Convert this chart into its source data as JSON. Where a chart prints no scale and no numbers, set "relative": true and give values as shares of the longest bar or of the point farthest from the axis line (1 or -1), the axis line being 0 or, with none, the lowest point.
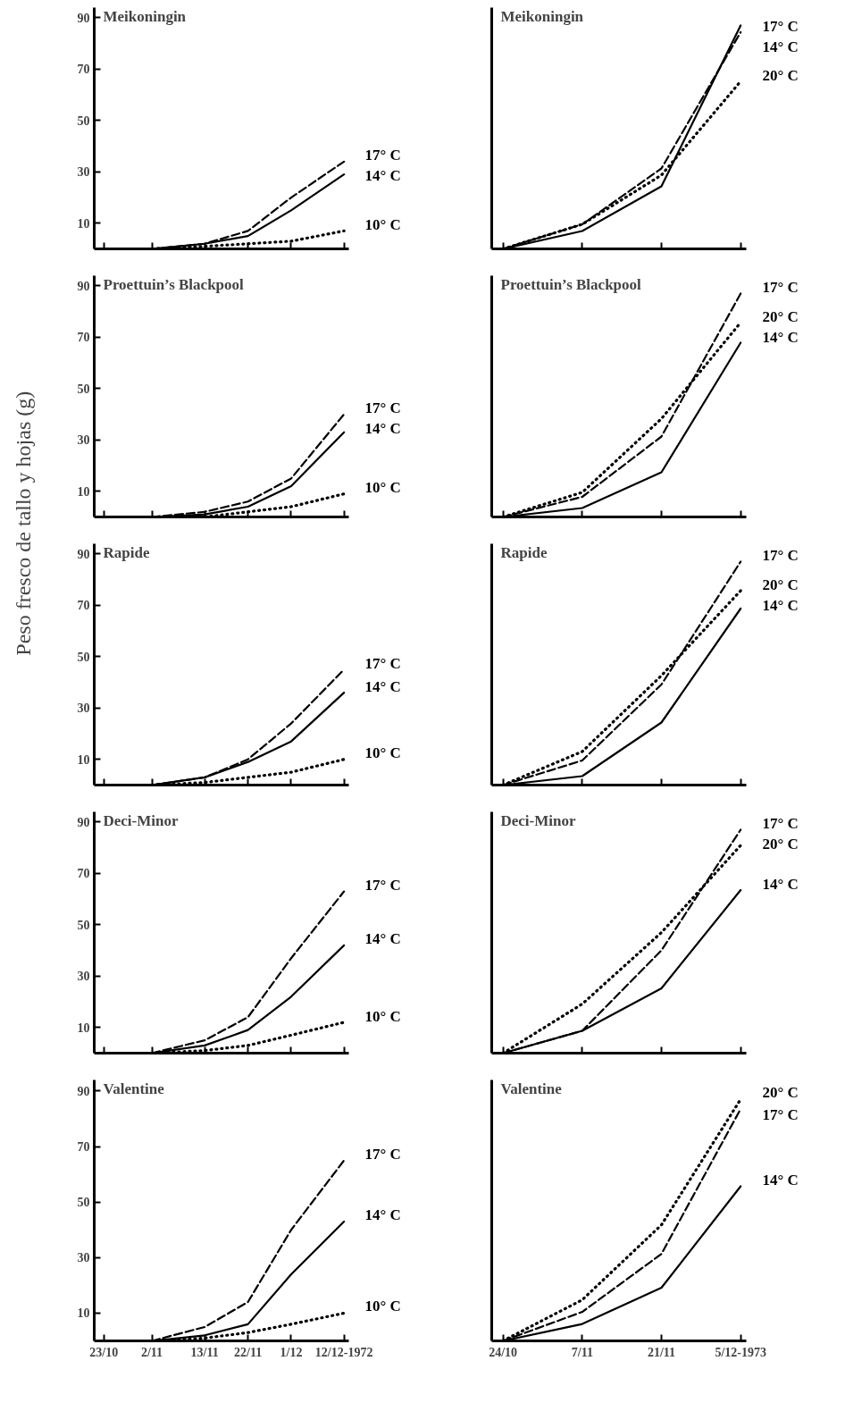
{
  "chart_data": [
    {
      "type": "line",
      "title": "Meikoningin",
      "x": [
        "1972-11-02",
        "1972-11-13",
        "1972-11-22",
        "1972-12-01",
        "1972-12-12"
      ],
      "xlim": [
        "1972-10-21",
        "1972-12-13"
      ],
      "xticks": [
        {
          "value": "1972-10-23",
          "label": null
        },
        {
          "value": "1972-11-02",
          "label": null
        },
        {
          "value": "1972-11-13",
          "label": null
        },
        {
          "value": "1972-11-22",
          "label": null
        },
        {
          "value": "1972-12-01",
          "label": null
        },
        {
          "value": "1972-12-12",
          "label": null
        }
      ],
      "ylim": [
        0,
        94
      ],
      "yticks": [
        10,
        30,
        50,
        70,
        90
      ],
      "tick_labels": "y",
      "series": [
        {
          "name": "17° C",
          "color": "#000000",
          "line_style": "dashed",
          "values": [
            0,
            2,
            7,
            20,
            34
          ]
        },
        {
          "name": "14° C",
          "color": "#000000",
          "line_style": "solid",
          "values": [
            0,
            2,
            5,
            15,
            29
          ]
        },
        {
          "name": "10° C",
          "color": "#000000",
          "line_style": "dotted",
          "values": [
            0,
            1,
            2,
            3,
            7
          ]
        }
      ]
    },
    {
      "type": "line",
      "title": "Meikoningin",
      "x": [
        "1973-10-24",
        "1973-11-07",
        "1973-11-21",
        "1973-12-05"
      ],
      "xlim": [
        "1973-10-22",
        "1973-12-06"
      ],
      "xticks": [
        {
          "value": "1973-10-24",
          "label": null
        },
        {
          "value": "1973-11-07",
          "label": null
        },
        {
          "value": "1973-11-21",
          "label": null
        },
        {
          "value": "1973-12-05",
          "label": null
        }
      ],
      "relative": true,
      "tick_labels": false,
      "series": [
        {
          "name": "17° C",
          "color": "#000000",
          "line_style": "dashed",
          "values": [
            0,
            0.11,
            0.36,
            0.97
          ]
        },
        {
          "name": "14° C",
          "color": "#000000",
          "line_style": "solid",
          "values": [
            0,
            0.08,
            0.28,
            1
          ]
        },
        {
          "name": "20° C",
          "color": "#000000",
          "line_style": "dotted",
          "values": [
            0,
            0.11,
            0.33,
            0.75
          ]
        }
      ]
    },
    {
      "type": "line",
      "title": "Proettuin’s Blackpool",
      "x": [
        "1972-11-02",
        "1972-11-13",
        "1972-11-22",
        "1972-12-01",
        "1972-12-12"
      ],
      "xlim": [
        "1972-10-21",
        "1972-12-13"
      ],
      "xticks": [
        {
          "value": "1972-10-23",
          "label": null
        },
        {
          "value": "1972-11-02",
          "label": null
        },
        {
          "value": "1972-11-13",
          "label": null
        },
        {
          "value": "1972-11-22",
          "label": null
        },
        {
          "value": "1972-12-01",
          "label": null
        },
        {
          "value": "1972-12-12",
          "label": null
        }
      ],
      "ylim": [
        0,
        94
      ],
      "yticks": [
        10,
        30,
        50,
        70,
        90
      ],
      "tick_labels": "y",
      "series": [
        {
          "name": "17° C",
          "color": "#000000",
          "line_style": "dashed",
          "values": [
            0,
            2,
            6,
            15,
            40
          ]
        },
        {
          "name": "14° C",
          "color": "#000000",
          "line_style": "solid",
          "values": [
            0,
            1,
            4,
            12,
            33
          ]
        },
        {
          "name": "10° C",
          "color": "#000000",
          "line_style": "dotted",
          "values": [
            0,
            0,
            2,
            4,
            9
          ]
        }
      ]
    },
    {
      "type": "line",
      "title": "Proettuin’s Blackpool",
      "x": [
        "1973-10-24",
        "1973-11-07",
        "1973-11-21",
        "1973-12-05"
      ],
      "xlim": [
        "1973-10-22",
        "1973-12-06"
      ],
      "xticks": [
        {
          "value": "1973-10-24",
          "label": null
        },
        {
          "value": "1973-11-07",
          "label": null
        },
        {
          "value": "1973-11-21",
          "label": null
        },
        {
          "value": "1973-12-05",
          "label": null
        }
      ],
      "relative": true,
      "tick_labels": false,
      "series": [
        {
          "name": "17° C",
          "color": "#000000",
          "line_style": "dashed",
          "values": [
            0,
            0.09,
            0.36,
            1
          ]
        },
        {
          "name": "20° C",
          "color": "#000000",
          "line_style": "dotted",
          "values": [
            0,
            0.11,
            0.44,
            0.87
          ]
        },
        {
          "name": "14° C",
          "color": "#000000",
          "line_style": "solid",
          "values": [
            0,
            0.04,
            0.2,
            0.78
          ]
        }
      ]
    },
    {
      "type": "line",
      "title": "Rapide",
      "ylabel": "Peso fresco de tallo y hojas (g)",
      "x": [
        "1972-11-02",
        "1972-11-13",
        "1972-11-22",
        "1972-12-01",
        "1972-12-12"
      ],
      "xlim": [
        "1972-10-21",
        "1972-12-13"
      ],
      "xticks": [
        {
          "value": "1972-10-23",
          "label": null
        },
        {
          "value": "1972-11-02",
          "label": null
        },
        {
          "value": "1972-11-13",
          "label": null
        },
        {
          "value": "1972-11-22",
          "label": null
        },
        {
          "value": "1972-12-01",
          "label": null
        },
        {
          "value": "1972-12-12",
          "label": null
        }
      ],
      "ylim": [
        0,
        94
      ],
      "yticks": [
        10,
        30,
        50,
        70,
        90
      ],
      "tick_labels": "y",
      "series": [
        {
          "name": "17° C",
          "color": "#000000",
          "line_style": "dashed",
          "values": [
            0,
            3,
            10,
            24,
            45
          ]
        },
        {
          "name": "14° C",
          "color": "#000000",
          "line_style": "solid",
          "values": [
            0,
            3,
            9,
            17,
            36
          ]
        },
        {
          "name": "10° C",
          "color": "#000000",
          "line_style": "dotted",
          "values": [
            0,
            1,
            3,
            5,
            10
          ]
        }
      ]
    },
    {
      "type": "line",
      "title": "Rapide",
      "x": [
        "1973-10-24",
        "1973-11-07",
        "1973-11-21",
        "1973-12-05"
      ],
      "xlim": [
        "1973-10-22",
        "1973-12-06"
      ],
      "xticks": [
        {
          "value": "1973-10-24",
          "label": null
        },
        {
          "value": "1973-11-07",
          "label": null
        },
        {
          "value": "1973-11-21",
          "label": null
        },
        {
          "value": "1973-12-05",
          "label": null
        }
      ],
      "relative": true,
      "tick_labels": false,
      "series": [
        {
          "name": "17° C",
          "color": "#000000",
          "line_style": "dashed",
          "values": [
            0,
            0.11,
            0.45,
            1
          ]
        },
        {
          "name": "20° C",
          "color": "#000000",
          "line_style": "dotted",
          "values": [
            0,
            0.15,
            0.49,
            0.87
          ]
        },
        {
          "name": "14° C",
          "color": "#000000",
          "line_style": "solid",
          "values": [
            0,
            0.04,
            0.28,
            0.79
          ]
        }
      ]
    },
    {
      "type": "line",
      "title": "Deci-Minor",
      "x": [
        "1972-11-02",
        "1972-11-13",
        "1972-11-22",
        "1972-12-01",
        "1972-12-12"
      ],
      "xlim": [
        "1972-10-21",
        "1972-12-13"
      ],
      "xticks": [
        {
          "value": "1972-10-23",
          "label": null
        },
        {
          "value": "1972-11-02",
          "label": null
        },
        {
          "value": "1972-11-13",
          "label": null
        },
        {
          "value": "1972-11-22",
          "label": null
        },
        {
          "value": "1972-12-01",
          "label": null
        },
        {
          "value": "1972-12-12",
          "label": null
        }
      ],
      "ylim": [
        0,
        94
      ],
      "yticks": [
        10,
        30,
        50,
        70,
        90
      ],
      "tick_labels": "y",
      "series": [
        {
          "name": "17° C",
          "color": "#000000",
          "line_style": "dashed",
          "values": [
            0,
            5,
            14,
            37,
            63
          ]
        },
        {
          "name": "14° C",
          "color": "#000000",
          "line_style": "solid",
          "values": [
            0,
            3,
            9,
            22,
            42
          ]
        },
        {
          "name": "10° C",
          "color": "#000000",
          "line_style": "dotted",
          "values": [
            0,
            1,
            3,
            7,
            12
          ]
        }
      ]
    },
    {
      "type": "line",
      "title": "Deci-Minor",
      "x": [
        "1973-10-24",
        "1973-11-07",
        "1973-11-21",
        "1973-12-05"
      ],
      "xlim": [
        "1973-10-22",
        "1973-12-06"
      ],
      "xticks": [
        {
          "value": "1973-10-24",
          "label": null
        },
        {
          "value": "1973-11-07",
          "label": null
        },
        {
          "value": "1973-11-21",
          "label": null
        },
        {
          "value": "1973-12-05",
          "label": null
        }
      ],
      "relative": true,
      "tick_labels": false,
      "series": [
        {
          "name": "17° C",
          "color": "#000000",
          "line_style": "dashed",
          "values": [
            0,
            0.1,
            0.46,
            1
          ]
        },
        {
          "name": "20° C",
          "color": "#000000",
          "line_style": "dotted",
          "values": [
            0,
            0.22,
            0.54,
            0.93
          ]
        },
        {
          "name": "14° C",
          "color": "#000000",
          "line_style": "solid",
          "values": [
            0,
            0.1,
            0.29,
            0.73
          ]
        }
      ]
    },
    {
      "type": "line",
      "title": "Valentine",
      "x": [
        "1972-11-02",
        "1972-11-13",
        "1972-11-22",
        "1972-12-01",
        "1972-12-12"
      ],
      "xlim": [
        "1972-10-21",
        "1972-12-13"
      ],
      "xticks": [
        {
          "value": "1972-10-23",
          "label": "23/10"
        },
        {
          "value": "1972-11-02",
          "label": "2/11"
        },
        {
          "value": "1972-11-13",
          "label": "13/11"
        },
        {
          "value": "1972-11-22",
          "label": "22/11"
        },
        {
          "value": "1972-12-01",
          "label": "1/12"
        },
        {
          "value": "1972-12-12",
          "label": "12/12-1972"
        }
      ],
      "ylim": [
        0,
        94
      ],
      "yticks": [
        10,
        30,
        50,
        70,
        90
      ],
      "series": [
        {
          "name": "17° C",
          "color": "#000000",
          "line_style": "dashed",
          "values": [
            0,
            5,
            14,
            40,
            65
          ]
        },
        {
          "name": "14° C",
          "color": "#000000",
          "line_style": "solid",
          "values": [
            0,
            2,
            6,
            24,
            43
          ]
        },
        {
          "name": "10° C",
          "color": "#000000",
          "line_style": "dotted",
          "values": [
            0,
            1,
            3,
            6,
            10
          ]
        }
      ]
    },
    {
      "type": "line",
      "title": "Valentine",
      "x": [
        "1973-10-24",
        "1973-11-07",
        "1973-11-21",
        "1973-12-05"
      ],
      "xlim": [
        "1973-10-22",
        "1973-12-06"
      ],
      "xticks": [
        {
          "value": "1973-10-24",
          "label": "24/10"
        },
        {
          "value": "1973-11-07",
          "label": "7/11"
        },
        {
          "value": "1973-11-21",
          "label": "21/11"
        },
        {
          "value": "1973-12-05",
          "label": "5/12-1973"
        }
      ],
      "relative": true,
      "tick_labels": "x",
      "series": [
        {
          "name": "20° C",
          "color": "#000000",
          "line_style": "dotted",
          "values": [
            0,
            0.17,
            0.48,
            1
          ]
        },
        {
          "name": "17° C",
          "color": "#000000",
          "line_style": "dashed",
          "values": [
            0,
            0.12,
            0.36,
            0.96
          ]
        },
        {
          "name": "14° C",
          "color": "#000000",
          "line_style": "solid",
          "values": [
            0,
            0.07,
            0.22,
            0.64
          ]
        }
      ]
    }
  ]
}
